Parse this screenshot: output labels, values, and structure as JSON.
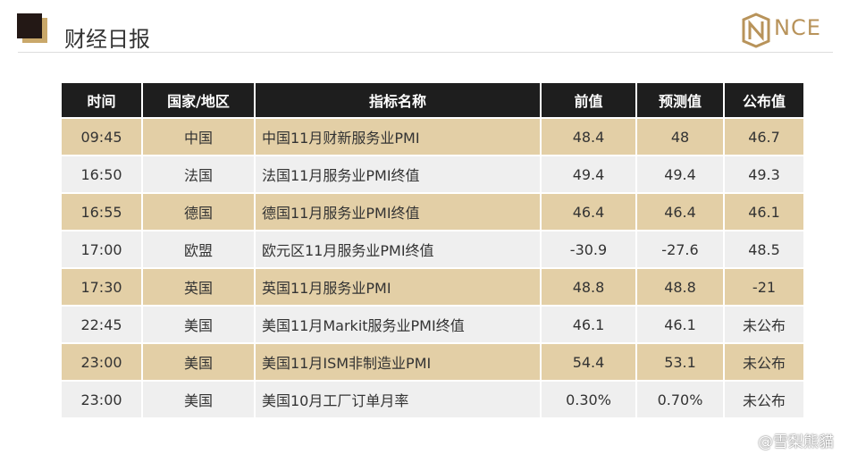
{
  "header": {
    "title": "财经日报",
    "logo": "NCE"
  },
  "table": {
    "columns": [
      "时间",
      "国家/地区",
      "指标名称",
      "前值",
      "预测值",
      "公布值"
    ],
    "rows": [
      [
        "09:45",
        "中国",
        "中国11月财新服务业PMI",
        "48.4",
        "48",
        "46.7"
      ],
      [
        "16:50",
        "法国",
        "法国11月服务业PMI终值",
        "49.4",
        "49.4",
        "49.3"
      ],
      [
        "16:55",
        "德国",
        "德国11月服务业PMI终值",
        "46.4",
        "46.4",
        "46.1"
      ],
      [
        "17:00",
        "欧盟",
        "欧元区11月服务业PMI终值",
        "-30.9",
        "-27.6",
        "48.5"
      ],
      [
        "17:30",
        "英国",
        "英国11月服务业PMI",
        "48.8",
        "48.8",
        "-21"
      ],
      [
        "22:45",
        "美国",
        "美国11月Markit服务业PMI终值",
        "46.1",
        "46.1",
        "未公布"
      ],
      [
        "23:00",
        "美国",
        "美国11月ISM非制造业PMI",
        "54.4",
        "53.1",
        "未公布"
      ],
      [
        "23:00",
        "美国",
        "美国10月工厂订单月率",
        "0.30%",
        "0.70%",
        "未公布"
      ]
    ]
  },
  "watermark": "@雪梨熊貓"
}
